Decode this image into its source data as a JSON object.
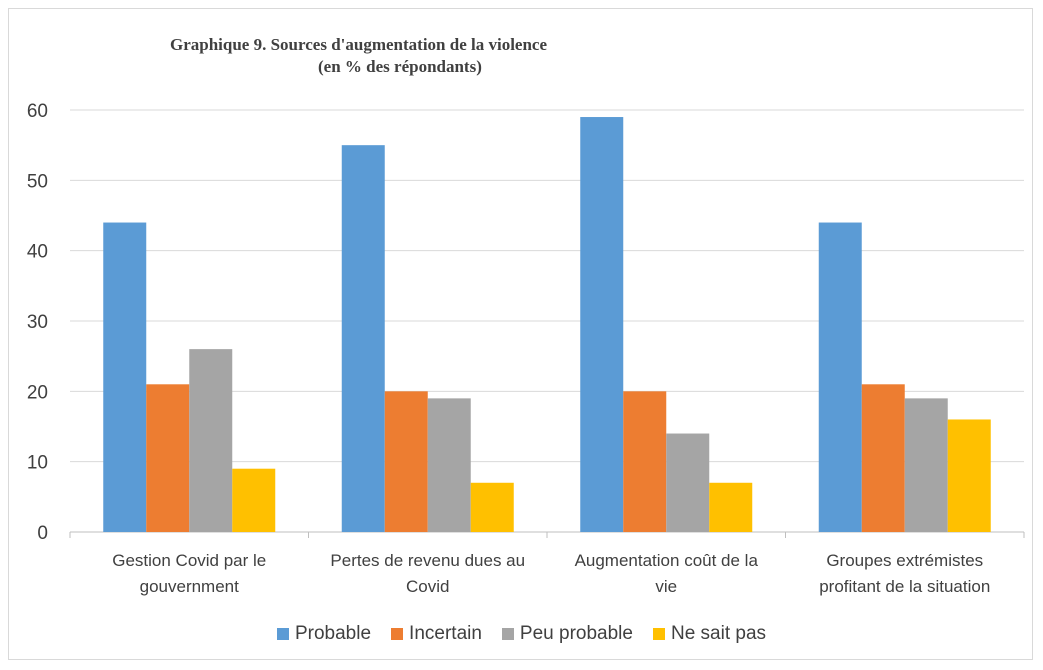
{
  "chart_data": {
    "type": "bar",
    "title": "Graphique 9. Sources d'augmentation de la violence",
    "subtitle": "(en % des répondants)",
    "categories": [
      [
        "Gestion Covid par le",
        "gouvernment"
      ],
      [
        "Pertes de revenu dues au",
        "Covid"
      ],
      [
        "Augmentation coût de la",
        "vie"
      ],
      [
        "Groupes extrémistes",
        "profitant de la situation"
      ]
    ],
    "series": [
      {
        "name": "Probable",
        "color": "#5b9bd5",
        "values": [
          44,
          55,
          59,
          44
        ]
      },
      {
        "name": "Incertain",
        "color": "#ed7d31",
        "values": [
          21,
          20,
          20,
          21
        ]
      },
      {
        "name": "Peu probable",
        "color": "#a5a5a5",
        "values": [
          26,
          19,
          14,
          19
        ]
      },
      {
        "name": "Ne sait pas",
        "color": "#ffc000",
        "values": [
          9,
          7,
          7,
          16
        ]
      }
    ],
    "ylim": [
      0,
      60
    ],
    "yticks": [
      0,
      10,
      20,
      30,
      40,
      50,
      60
    ],
    "grid": true,
    "legend_position": "bottom"
  }
}
